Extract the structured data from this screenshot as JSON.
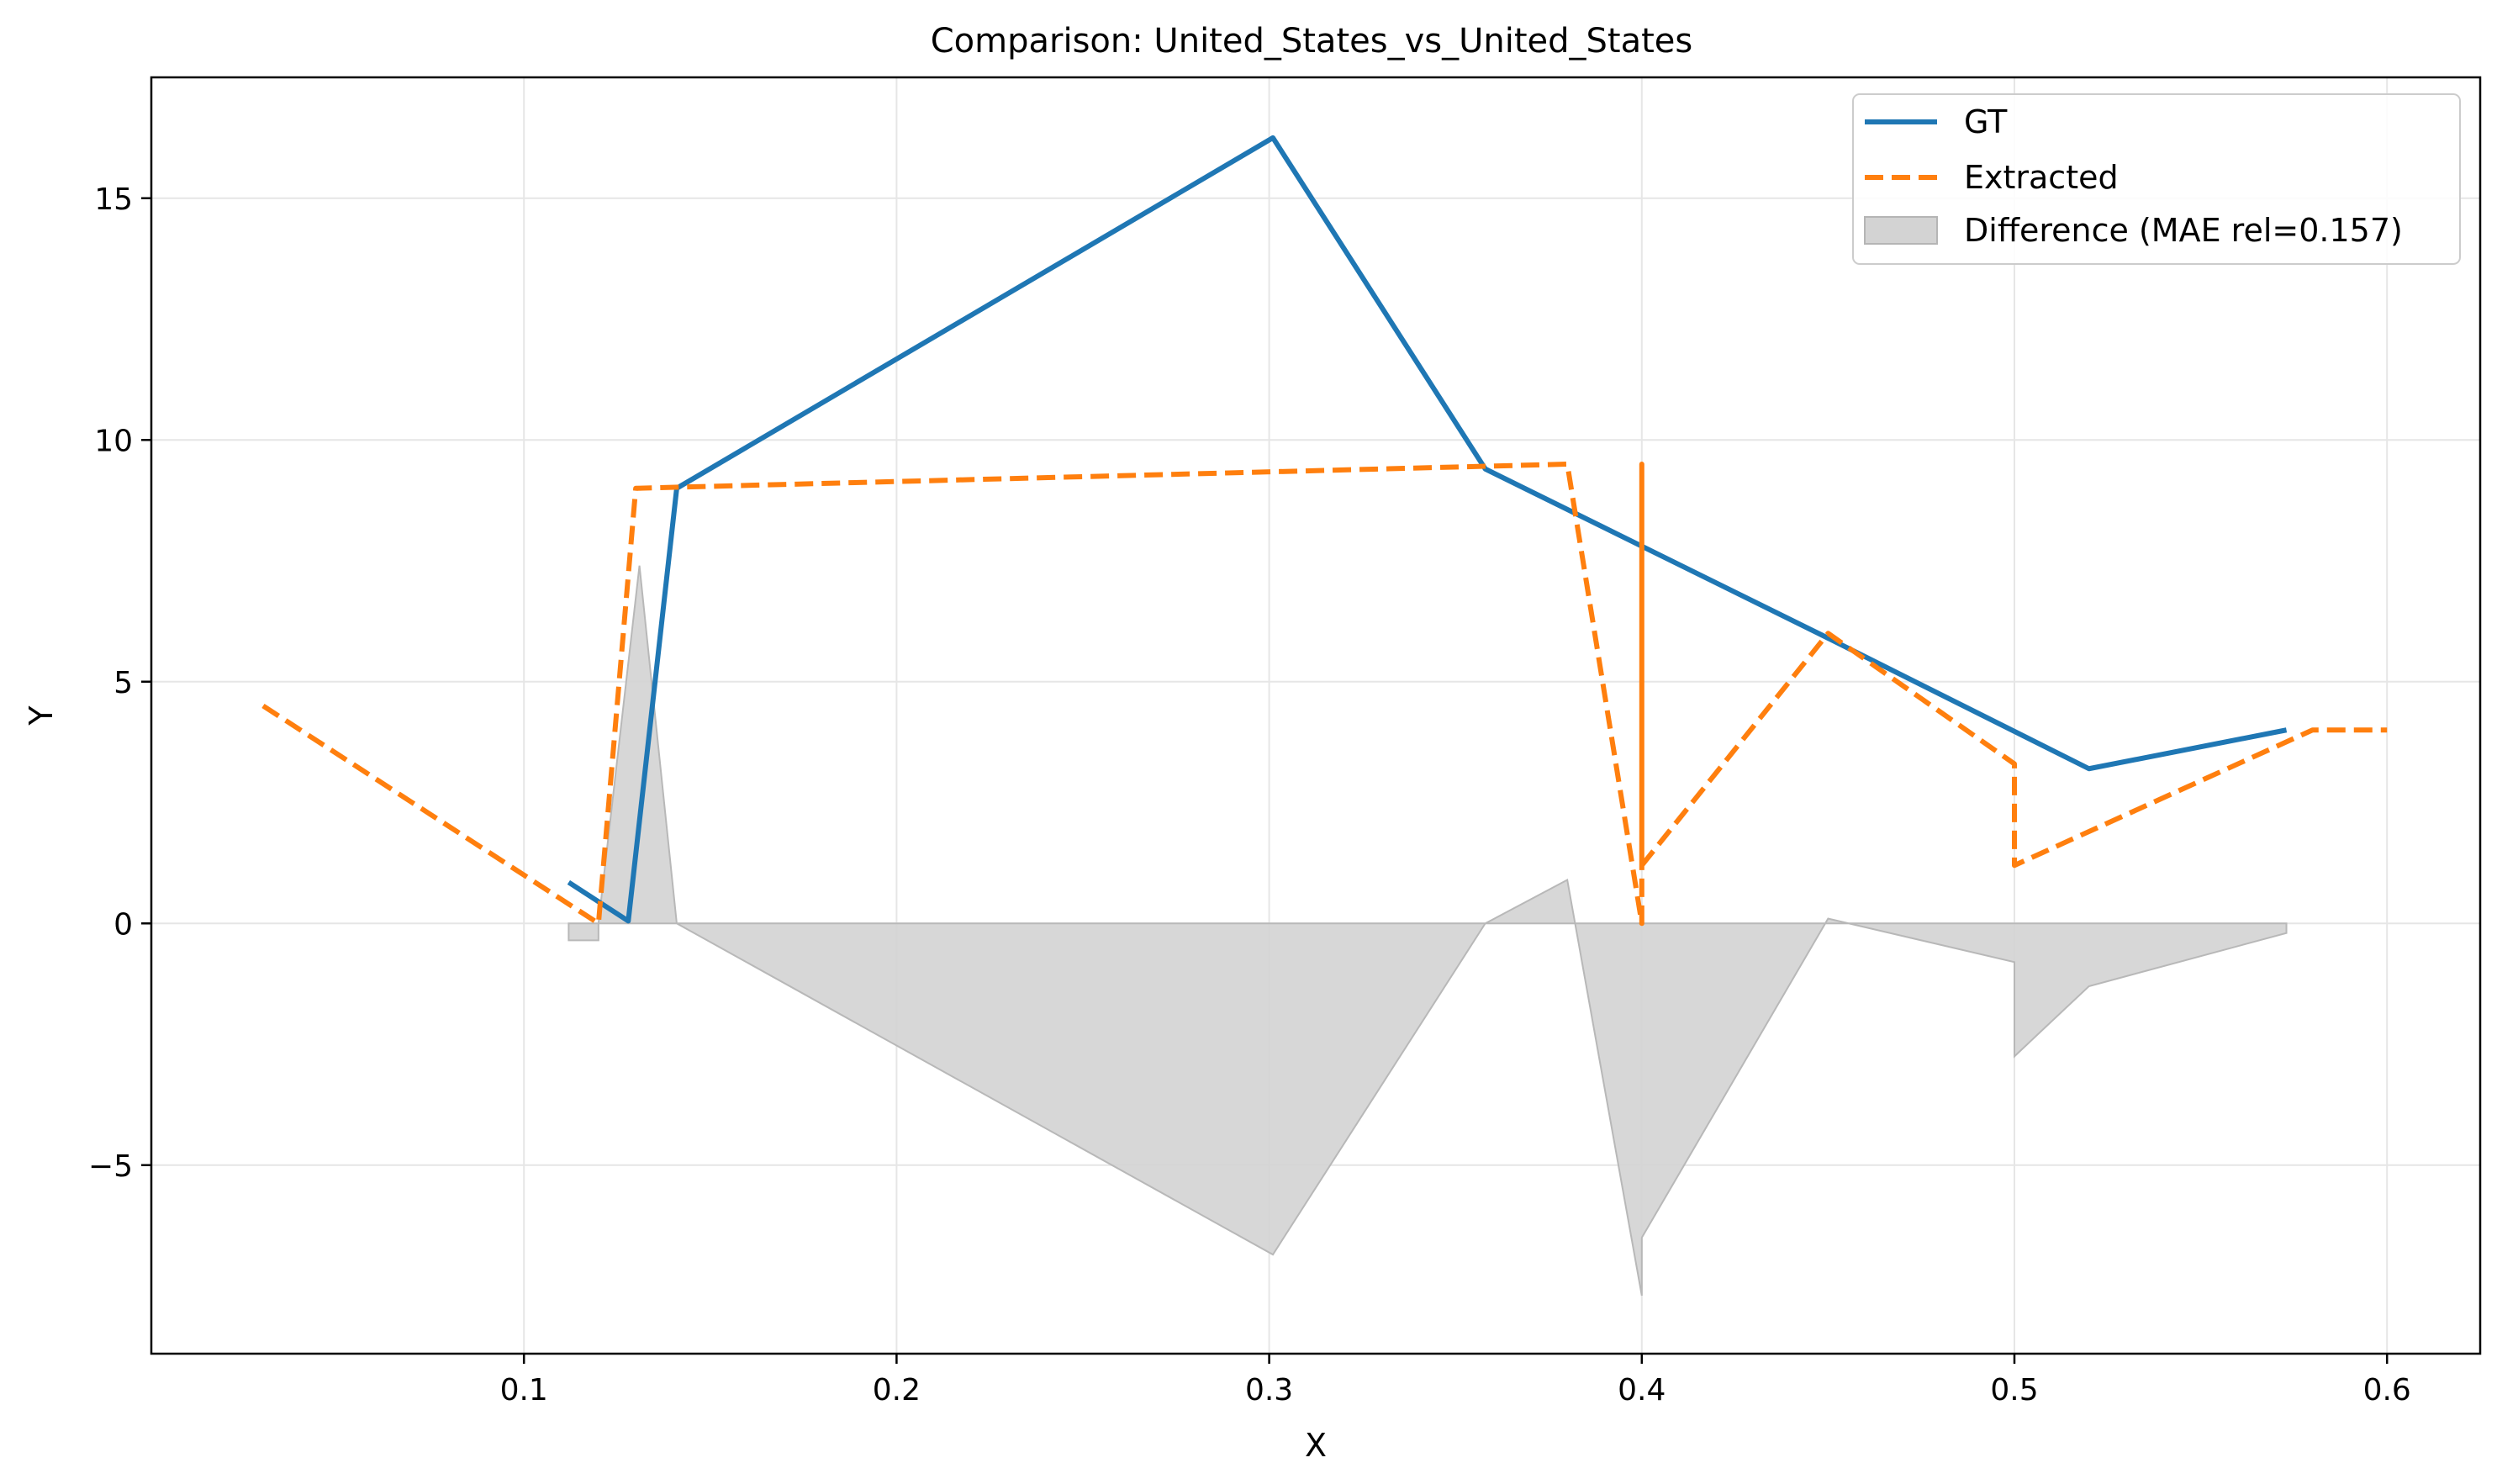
{
  "chart_data": {
    "type": "line",
    "title": "Comparison: United_States_vs_United_States",
    "xlabel": "X",
    "ylabel": "Y",
    "xlim": [
      0.0,
      0.625
    ],
    "ylim": [
      -8.9,
      17.5
    ],
    "x_ticks": [
      0.1,
      0.2,
      0.3,
      0.4,
      0.5,
      0.6
    ],
    "x_tick_labels": [
      "0.1",
      "0.2",
      "0.3",
      "0.4",
      "0.5",
      "0.6"
    ],
    "y_ticks": [
      -5,
      0,
      5,
      10,
      15
    ],
    "y_tick_labels": [
      "−5",
      "0",
      "5",
      "10",
      "15"
    ],
    "grid": true,
    "legend_position": "top-right",
    "series": [
      {
        "name": "GT",
        "color": "#1f77b4",
        "style": "solid",
        "points": [
          [
            0.112,
            0.85
          ],
          [
            0.128,
            0.05
          ],
          [
            0.141,
            9.0
          ],
          [
            0.301,
            16.25
          ],
          [
            0.358,
            9.4
          ],
          [
            0.45,
            5.9
          ],
          [
            0.52,
            3.2
          ],
          [
            0.573,
            4.0
          ]
        ]
      },
      {
        "name": "Extracted",
        "color": "#ff7f0e",
        "style": "dashed",
        "points": [
          [
            0.03,
            4.5
          ],
          [
            0.12,
            0.0
          ],
          [
            0.13,
            9.0
          ],
          [
            0.38,
            9.5
          ],
          [
            0.4,
            0.0
          ],
          [
            0.4,
            9.5
          ],
          [
            0.4,
            1.2
          ],
          [
            0.45,
            6.0
          ],
          [
            0.5,
            3.3
          ],
          [
            0.5,
            1.2
          ],
          [
            0.58,
            4.0
          ],
          [
            0.6,
            4.0
          ]
        ]
      }
    ],
    "difference": {
      "name": "Difference (MAE rel=0.157)",
      "color": "#d3d3d3",
      "points": [
        [
          0.112,
          -0.35
        ],
        [
          0.12,
          -0.35
        ],
        [
          0.12,
          0.0
        ],
        [
          0.131,
          7.4
        ],
        [
          0.141,
          0.0
        ],
        [
          0.301,
          -6.85
        ],
        [
          0.358,
          0.0
        ],
        [
          0.38,
          0.9
        ],
        [
          0.4,
          -7.7
        ],
        [
          0.4,
          -6.5
        ],
        [
          0.45,
          0.1
        ],
        [
          0.5,
          -0.8
        ],
        [
          0.5,
          -2.75
        ],
        [
          0.52,
          -1.3
        ],
        [
          0.573,
          -0.2
        ],
        [
          0.573,
          0.0
        ]
      ]
    }
  }
}
